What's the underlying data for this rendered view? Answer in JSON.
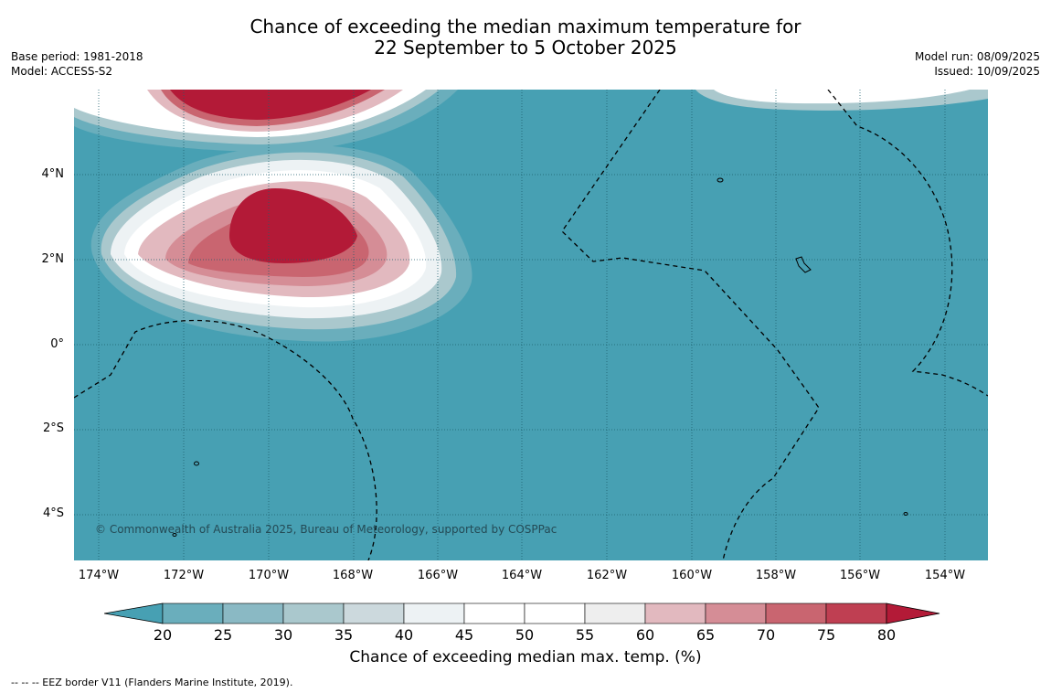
{
  "title": {
    "line1": "Chance of exceeding the median maximum temperature for",
    "line2": "22 September to 5 October 2025"
  },
  "meta_left": {
    "base_period": "Base period: 1981-2018",
    "model": "Model: ACCESS-S2"
  },
  "meta_right": {
    "model_run": "Model run: 08/09/2025",
    "issued": "Issued: 10/09/2025"
  },
  "map": {
    "lat_ticks": [
      "4°N",
      "2°N",
      "0°",
      "2°S",
      "4°S"
    ],
    "lon_ticks": [
      "174°W",
      "172°W",
      "170°W",
      "168°W",
      "166°W",
      "164°W",
      "162°W",
      "160°W",
      "158°W",
      "156°W",
      "154°W"
    ],
    "background_color": "#47a0b3",
    "copyright": "© Commonwealth of Australia 2025, Bureau of Meteorology, supported by COSPPac"
  },
  "colorbar": {
    "labels": [
      "20",
      "25",
      "30",
      "35",
      "40",
      "45",
      "50",
      "55",
      "60",
      "65",
      "70",
      "75",
      "80"
    ],
    "colors": [
      "#47a0b3",
      "#6aaebc",
      "#8ab9c4",
      "#aac8cd",
      "#ccd9dd",
      "#edf2f4",
      "#ffffff",
      "#ffffff",
      "#eeeeee",
      "#e2b9bf",
      "#d58d96",
      "#c96570",
      "#bf3f52",
      "#b31a37"
    ],
    "title": "Chance of exceeding median max. temp. (%)"
  },
  "footnote": "--  --  -- EEZ border V11 (Flanders Marine Institute, 2019)."
}
